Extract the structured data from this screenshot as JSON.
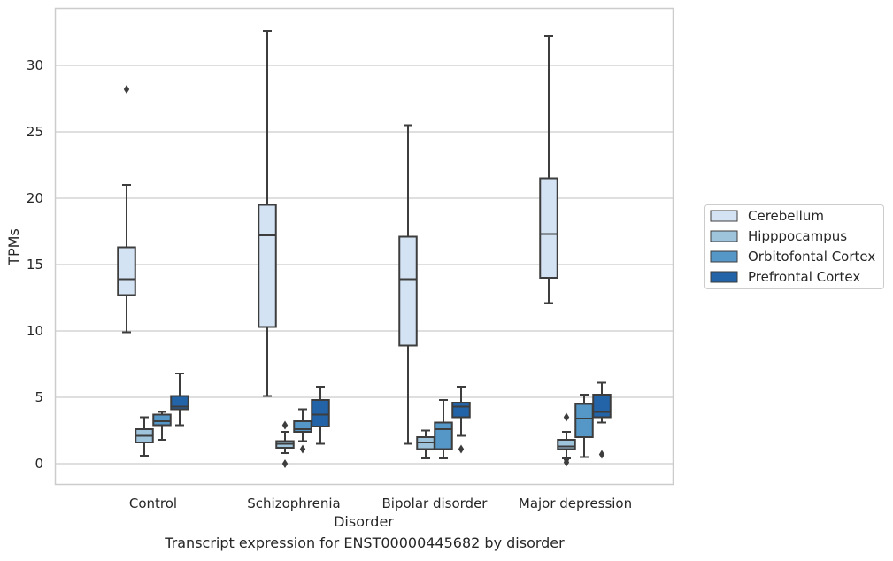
{
  "caption": "Transcript expression for ENST00000445682 by disorder",
  "chart_data": {
    "type": "boxplot",
    "xlabel": "Disorder",
    "ylabel": "TPMs",
    "categories": [
      "Control",
      "Schizophrenia",
      "Bipolar disorder",
      "Major depression"
    ],
    "yticks": [
      0,
      5,
      10,
      15,
      20,
      25,
      30
    ],
    "ylim": [
      -1.6,
      34.3
    ],
    "grid": "y",
    "legend": {
      "placement": "right"
    },
    "series": [
      {
        "name": "Cerebellum",
        "color": "#d4e3f3",
        "boxes": [
          {
            "whisker_low": 9.9,
            "q1": 12.7,
            "median": 13.9,
            "q3": 16.3,
            "whisker_high": 21.0,
            "outliers": [
              28.2
            ]
          },
          {
            "whisker_low": 5.1,
            "q1": 10.3,
            "median": 17.2,
            "q3": 19.5,
            "whisker_high": 32.6,
            "outliers": []
          },
          {
            "whisker_low": 1.5,
            "q1": 8.9,
            "median": 13.9,
            "q3": 17.1,
            "whisker_high": 25.5,
            "outliers": []
          },
          {
            "whisker_low": 12.1,
            "q1": 14.0,
            "median": 17.3,
            "q3": 21.5,
            "whisker_high": 32.2,
            "outliers": []
          }
        ]
      },
      {
        "name": "Hipppocampus",
        "color": "#9ec4dc",
        "boxes": [
          {
            "whisker_low": 0.6,
            "q1": 1.6,
            "median": 2.1,
            "q3": 2.6,
            "whisker_high": 3.5,
            "outliers": []
          },
          {
            "whisker_low": 0.8,
            "q1": 1.2,
            "median": 1.5,
            "q3": 1.7,
            "whisker_high": 2.4,
            "outliers": [
              2.9,
              0.0
            ]
          },
          {
            "whisker_low": 0.4,
            "q1": 1.1,
            "median": 1.6,
            "q3": 2.0,
            "whisker_high": 2.5,
            "outliers": []
          },
          {
            "whisker_low": 0.4,
            "q1": 1.1,
            "median": 1.3,
            "q3": 1.8,
            "whisker_high": 2.4,
            "outliers": [
              0.3,
              3.5,
              0.1
            ]
          }
        ]
      },
      {
        "name": "Orbitofontal Cortex",
        "color": "#5597c6",
        "boxes": [
          {
            "whisker_low": 1.8,
            "q1": 2.9,
            "median": 3.2,
            "q3": 3.7,
            "whisker_high": 3.9,
            "outliers": []
          },
          {
            "whisker_low": 1.7,
            "q1": 2.4,
            "median": 2.6,
            "q3": 3.2,
            "whisker_high": 4.1,
            "outliers": [
              1.1
            ]
          },
          {
            "whisker_low": 0.4,
            "q1": 1.1,
            "median": 2.6,
            "q3": 3.1,
            "whisker_high": 4.8,
            "outliers": []
          },
          {
            "whisker_low": 0.5,
            "q1": 2.0,
            "median": 3.4,
            "q3": 4.5,
            "whisker_high": 5.2,
            "outliers": []
          }
        ]
      },
      {
        "name": "Prefrontal Cortex",
        "color": "#2363a8",
        "boxes": [
          {
            "whisker_low": 2.9,
            "q1": 4.1,
            "median": 4.3,
            "q3": 5.1,
            "whisker_high": 6.8,
            "outliers": []
          },
          {
            "whisker_low": 1.5,
            "q1": 2.8,
            "median": 3.7,
            "q3": 4.8,
            "whisker_high": 5.8,
            "outliers": []
          },
          {
            "whisker_low": 2.1,
            "q1": 3.5,
            "median": 4.3,
            "q3": 4.6,
            "whisker_high": 5.8,
            "outliers": [
              1.1
            ]
          },
          {
            "whisker_low": 3.1,
            "q1": 3.5,
            "median": 3.9,
            "q3": 5.2,
            "whisker_high": 6.1,
            "outliers": [
              0.7
            ]
          }
        ]
      }
    ]
  }
}
